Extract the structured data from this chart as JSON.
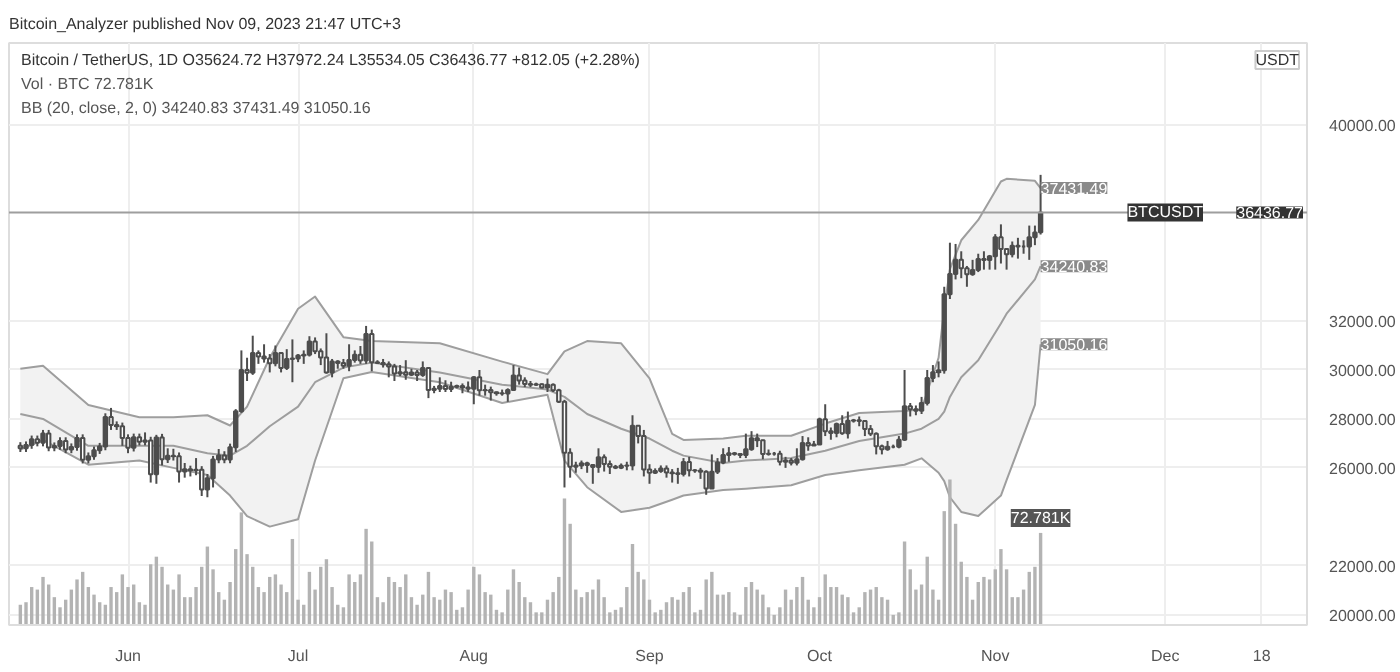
{
  "chart_data": {
    "type": "candlestick",
    "title": "Bitcoin / TetherUS, 1D  O35624.72 H37972.24 L35534.05 C36436.77 +812.05 (+2.28%)",
    "ylabel": "USDT",
    "annotations": [
      "Bitcoin_Analyzer published Nov 09, 2023 21:47 UTC+3",
      "Vol · BTC 72.781K",
      "BB (20, close, 2, 0) 34240.83 37431.49 31050.16",
      {
        "text": "37431.49",
        "x": "2023-11-09",
        "y": 37431.49
      },
      {
        "text": "34240.83",
        "x": "2023-11-09",
        "y": 34240.83
      },
      {
        "text": "31050.16",
        "x": "2023-11-09",
        "y": 31050.16
      },
      {
        "text": "36436.77",
        "y": 36436.77
      }
    ],
    "grid": true,
    "xlim": [
      "2023-05-11",
      "2023-12-26"
    ],
    "ylim": [
      19580,
      43360
    ],
    "xticks": [
      {
        "value": "2023-06-01",
        "label": "Jun"
      },
      {
        "value": "2023-07-01",
        "label": "Jul"
      },
      {
        "value": "2023-08-01",
        "label": "Aug"
      },
      {
        "value": "2023-09-01",
        "label": "Sep"
      },
      {
        "value": "2023-10-01",
        "label": "Oct"
      },
      {
        "value": "2023-11-01",
        "label": "Nov"
      },
      {
        "value": "2023-12-01",
        "label": "Dec"
      },
      {
        "value": "2023-12-18",
        "label": "18"
      }
    ],
    "yticks": [
      {
        "value": 20000,
        "label": "20000.00"
      },
      {
        "value": 22000,
        "label": "22000.00"
      },
      {
        "value": 26000,
        "label": "26000.00"
      },
      {
        "value": 28000,
        "label": "28000.00"
      },
      {
        "value": 30000,
        "label": "30000.00"
      },
      {
        "value": 32000,
        "label": "32000.00"
      },
      {
        "value": 40000,
        "label": "40000.00"
      }
    ],
    "y2lim": [
      0,
      460
    ],
    "ref_lines": [
      {
        "axis": "y",
        "value": 36436.77,
        "label": "BTCUSDT",
        "color": "#9e9e9e"
      }
    ],
    "color": "#4d4d4d",
    "x": [
      "2023-05-13",
      "2023-05-14",
      "2023-05-15",
      "2023-05-16",
      "2023-05-17",
      "2023-05-18",
      "2023-05-19",
      "2023-05-20",
      "2023-05-21",
      "2023-05-22",
      "2023-05-23",
      "2023-05-24",
      "2023-05-25",
      "2023-05-26",
      "2023-05-27",
      "2023-05-28",
      "2023-05-29",
      "2023-05-30",
      "2023-05-31",
      "2023-06-01",
      "2023-06-02",
      "2023-06-03",
      "2023-06-04",
      "2023-06-05",
      "2023-06-06",
      "2023-06-07",
      "2023-06-08",
      "2023-06-09",
      "2023-06-10",
      "2023-06-11",
      "2023-06-12",
      "2023-06-13",
      "2023-06-14",
      "2023-06-15",
      "2023-06-16",
      "2023-06-17",
      "2023-06-18",
      "2023-06-19",
      "2023-06-20",
      "2023-06-21",
      "2023-06-22",
      "2023-06-23",
      "2023-06-24",
      "2023-06-25",
      "2023-06-26",
      "2023-06-27",
      "2023-06-28",
      "2023-06-29",
      "2023-06-30",
      "2023-07-01",
      "2023-07-02",
      "2023-07-03",
      "2023-07-04",
      "2023-07-05",
      "2023-07-06",
      "2023-07-07",
      "2023-07-08",
      "2023-07-09",
      "2023-07-10",
      "2023-07-11",
      "2023-07-12",
      "2023-07-13",
      "2023-07-14",
      "2023-07-15",
      "2023-07-16",
      "2023-07-17",
      "2023-07-18",
      "2023-07-19",
      "2023-07-20",
      "2023-07-21",
      "2023-07-22",
      "2023-07-23",
      "2023-07-24",
      "2023-07-25",
      "2023-07-26",
      "2023-07-27",
      "2023-07-28",
      "2023-07-29",
      "2023-07-30",
      "2023-07-31",
      "2023-08-01",
      "2023-08-02",
      "2023-08-03",
      "2023-08-04",
      "2023-08-05",
      "2023-08-06",
      "2023-08-07",
      "2023-08-08",
      "2023-08-09",
      "2023-08-10",
      "2023-08-11",
      "2023-08-12",
      "2023-08-13",
      "2023-08-14",
      "2023-08-15",
      "2023-08-16",
      "2023-08-17",
      "2023-08-18",
      "2023-08-19",
      "2023-08-20",
      "2023-08-21",
      "2023-08-22",
      "2023-08-23",
      "2023-08-24",
      "2023-08-25",
      "2023-08-26",
      "2023-08-27",
      "2023-08-28",
      "2023-08-29",
      "2023-08-30",
      "2023-08-31",
      "2023-09-01",
      "2023-09-02",
      "2023-09-03",
      "2023-09-04",
      "2023-09-05",
      "2023-09-06",
      "2023-09-07",
      "2023-09-08",
      "2023-09-09",
      "2023-09-10",
      "2023-09-11",
      "2023-09-12",
      "2023-09-13",
      "2023-09-14",
      "2023-09-15",
      "2023-09-16",
      "2023-09-17",
      "2023-09-18",
      "2023-09-19",
      "2023-09-20",
      "2023-09-21",
      "2023-09-22",
      "2023-09-23",
      "2023-09-24",
      "2023-09-25",
      "2023-09-26",
      "2023-09-27",
      "2023-09-28",
      "2023-09-29",
      "2023-09-30",
      "2023-10-01",
      "2023-10-02",
      "2023-10-03",
      "2023-10-04",
      "2023-10-05",
      "2023-10-06",
      "2023-10-07",
      "2023-10-08",
      "2023-10-09",
      "2023-10-10",
      "2023-10-11",
      "2023-10-12",
      "2023-10-13",
      "2023-10-14",
      "2023-10-15",
      "2023-10-16",
      "2023-10-17",
      "2023-10-18",
      "2023-10-19",
      "2023-10-20",
      "2023-10-21",
      "2023-10-22",
      "2023-10-23",
      "2023-10-24",
      "2023-10-25",
      "2023-10-26",
      "2023-10-27",
      "2023-10-28",
      "2023-10-29",
      "2023-10-30",
      "2023-10-31",
      "2023-11-01",
      "2023-11-02",
      "2023-11-03",
      "2023-11-04",
      "2023-11-05",
      "2023-11-06",
      "2023-11-07",
      "2023-11-08",
      "2023-11-09"
    ],
    "ohlc": [
      [
        26900,
        27050,
        26650,
        26800
      ],
      [
        26800,
        27080,
        26650,
        26930
      ],
      [
        26930,
        27320,
        26780,
        27170
      ],
      [
        27170,
        27320,
        26880,
        27030
      ],
      [
        27030,
        27550,
        26880,
        27400
      ],
      [
        27400,
        27550,
        26680,
        26830
      ],
      [
        26830,
        27040,
        26680,
        26890
      ],
      [
        26890,
        27250,
        26740,
        27100
      ],
      [
        27100,
        27250,
        26600,
        26750
      ],
      [
        26750,
        27000,
        26600,
        26850
      ],
      [
        26850,
        27370,
        26700,
        27220
      ],
      [
        27220,
        27370,
        26180,
        26330
      ],
      [
        26330,
        26630,
        26180,
        26480
      ],
      [
        26480,
        26870,
        26330,
        26720
      ],
      [
        26720,
        27020,
        26570,
        26870
      ],
      [
        26870,
        28230,
        26720,
        28080
      ],
      [
        28080,
        28450,
        27550,
        27750
      ],
      [
        27750,
        27900,
        27550,
        27700
      ],
      [
        27700,
        27850,
        26900,
        27220
      ],
      [
        27220,
        27370,
        26600,
        26820
      ],
      [
        26820,
        27400,
        26670,
        27250
      ],
      [
        27250,
        27400,
        26920,
        27070
      ],
      [
        27070,
        27450,
        26920,
        27120
      ],
      [
        27120,
        27270,
        25400,
        25740
      ],
      [
        25740,
        27350,
        25350,
        27240
      ],
      [
        27240,
        27390,
        26100,
        26350
      ],
      [
        26350,
        26800,
        26200,
        26500
      ],
      [
        26500,
        26780,
        26300,
        26480
      ],
      [
        26480,
        26630,
        25400,
        25850
      ],
      [
        25850,
        26200,
        25600,
        25940
      ],
      [
        25940,
        26090,
        25650,
        25900
      ],
      [
        25900,
        26400,
        25700,
        25920
      ],
      [
        25920,
        26070,
        24850,
        25120
      ],
      [
        25120,
        25750,
        24800,
        25580
      ],
      [
        25580,
        26490,
        25200,
        26340
      ],
      [
        26340,
        26770,
        26190,
        26510
      ],
      [
        26510,
        26680,
        26190,
        26340
      ],
      [
        26340,
        26990,
        26190,
        26840
      ],
      [
        26840,
        28400,
        26650,
        28310
      ],
      [
        28310,
        30800,
        28250,
        30000
      ],
      [
        30000,
        30500,
        29550,
        29890
      ],
      [
        29890,
        31400,
        29800,
        30690
      ],
      [
        30690,
        30800,
        30250,
        30550
      ],
      [
        30550,
        31050,
        30300,
        30470
      ],
      [
        30470,
        30650,
        29900,
        30270
      ],
      [
        30270,
        31000,
        30150,
        30690
      ],
      [
        30690,
        30700,
        29900,
        30080
      ],
      [
        30080,
        30850,
        30000,
        30450
      ],
      [
        30450,
        31250,
        29500,
        30470
      ],
      [
        30470,
        30650,
        30320,
        30590
      ],
      [
        30590,
        30800,
        30250,
        30620
      ],
      [
        30620,
        31380,
        30550,
        31160
      ],
      [
        31160,
        31330,
        30650,
        30770
      ],
      [
        30770,
        30880,
        30200,
        30510
      ],
      [
        30510,
        31500,
        29850,
        29900
      ],
      [
        29900,
        30450,
        29700,
        30350
      ],
      [
        30350,
        30400,
        30050,
        30290
      ],
      [
        30290,
        30450,
        30050,
        30170
      ],
      [
        30170,
        31050,
        29950,
        30410
      ],
      [
        30410,
        30800,
        30300,
        30620
      ],
      [
        30620,
        30980,
        30250,
        30390
      ],
      [
        30390,
        31800,
        30250,
        31470
      ],
      [
        31470,
        31650,
        29950,
        30320
      ],
      [
        30320,
        30400,
        30250,
        30290
      ],
      [
        30290,
        30450,
        30100,
        30230
      ],
      [
        30230,
        30350,
        29700,
        30140
      ],
      [
        30140,
        30250,
        29550,
        29860
      ],
      [
        29860,
        30200,
        29750,
        29910
      ],
      [
        29910,
        30400,
        29600,
        29800
      ],
      [
        29800,
        30050,
        29750,
        29900
      ],
      [
        29900,
        30000,
        29550,
        29790
      ],
      [
        29790,
        30350,
        29720,
        30080
      ],
      [
        30080,
        30100,
        28850,
        29180
      ],
      [
        29180,
        29350,
        29050,
        29230
      ],
      [
        29230,
        29700,
        29100,
        29350
      ],
      [
        29350,
        29580,
        29100,
        29220
      ],
      [
        29220,
        29520,
        29100,
        29310
      ],
      [
        29310,
        29400,
        29250,
        29350
      ],
      [
        29350,
        29450,
        29050,
        29280
      ],
      [
        29280,
        29530,
        29100,
        29230
      ],
      [
        29230,
        29750,
        28600,
        29700
      ],
      [
        29700,
        30000,
        28950,
        29170
      ],
      [
        29170,
        29400,
        28950,
        29180
      ],
      [
        29180,
        29320,
        28750,
        29090
      ],
      [
        29090,
        29120,
        28950,
        29050
      ],
      [
        29050,
        29200,
        28950,
        29040
      ],
      [
        29040,
        29250,
        28700,
        29180
      ],
      [
        29180,
        30200,
        29150,
        29770
      ],
      [
        29770,
        30100,
        29400,
        29570
      ],
      [
        29570,
        29700,
        29300,
        29430
      ],
      [
        29430,
        29550,
        29300,
        29400
      ],
      [
        29400,
        29480,
        29350,
        29420
      ],
      [
        29420,
        29450,
        29250,
        29280
      ],
      [
        29280,
        29650,
        29100,
        29400
      ],
      [
        29400,
        29450,
        29100,
        29170
      ],
      [
        29170,
        29230,
        28650,
        28700
      ],
      [
        28700,
        28780,
        25200,
        26620
      ],
      [
        26620,
        26800,
        25600,
        26050
      ],
      [
        26050,
        26250,
        25800,
        26100
      ],
      [
        26100,
        26300,
        25950,
        26190
      ],
      [
        26190,
        26250,
        25800,
        26120
      ],
      [
        26120,
        26150,
        25350,
        26040
      ],
      [
        26040,
        26800,
        25800,
        26430
      ],
      [
        26430,
        26550,
        25850,
        26160
      ],
      [
        26160,
        26300,
        25750,
        26050
      ],
      [
        26050,
        26120,
        25950,
        26010
      ],
      [
        26010,
        26180,
        25950,
        26090
      ],
      [
        26090,
        26250,
        25900,
        26100
      ],
      [
        26100,
        28150,
        25900,
        27720
      ],
      [
        27720,
        27750,
        27000,
        27300
      ],
      [
        27300,
        27550,
        25650,
        25930
      ],
      [
        25930,
        26150,
        25350,
        25800
      ],
      [
        25800,
        25980,
        25750,
        25870
      ],
      [
        25870,
        26100,
        25800,
        25970
      ],
      [
        25970,
        26100,
        25600,
        25810
      ],
      [
        25810,
        25950,
        25400,
        25780
      ],
      [
        25780,
        26000,
        25350,
        25750
      ],
      [
        25750,
        26400,
        25650,
        26240
      ],
      [
        26240,
        26450,
        25650,
        25900
      ],
      [
        25900,
        25950,
        25800,
        25890
      ],
      [
        25890,
        26000,
        25550,
        25840
      ],
      [
        25840,
        25900,
        24900,
        25160
      ],
      [
        25160,
        26550,
        25150,
        25840
      ],
      [
        25840,
        26400,
        25750,
        26220
      ],
      [
        26220,
        26800,
        26150,
        26530
      ],
      [
        26530,
        26850,
        26250,
        26600
      ],
      [
        26600,
        26650,
        26500,
        26570
      ],
      [
        26570,
        26600,
        26400,
        26530
      ],
      [
        26530,
        27400,
        26400,
        26760
      ],
      [
        26760,
        27500,
        26700,
        27210
      ],
      [
        27210,
        27400,
        26850,
        27130
      ],
      [
        27130,
        27150,
        26350,
        26570
      ],
      [
        26570,
        26750,
        26500,
        26580
      ],
      [
        26580,
        26650,
        26500,
        26580
      ],
      [
        26580,
        26700,
        26100,
        26250
      ],
      [
        26250,
        26450,
        26000,
        26300
      ],
      [
        26300,
        26400,
        26100,
        26210
      ],
      [
        26210,
        26800,
        26100,
        26350
      ],
      [
        26350,
        27300,
        26300,
        27020
      ],
      [
        27020,
        27250,
        26700,
        26910
      ],
      [
        26910,
        27100,
        26900,
        26960
      ],
      [
        26960,
        28050,
        26950,
        27990
      ],
      [
        27990,
        28600,
        27300,
        27500
      ],
      [
        27500,
        27650,
        27150,
        27430
      ],
      [
        27430,
        27850,
        27250,
        27790
      ],
      [
        27790,
        28150,
        27350,
        27410
      ],
      [
        27410,
        28300,
        27200,
        27930
      ],
      [
        27930,
        28000,
        27850,
        27950
      ],
      [
        27950,
        28100,
        27700,
        27920
      ],
      [
        27920,
        27950,
        27300,
        27590
      ],
      [
        27590,
        27750,
        27300,
        27390
      ],
      [
        27390,
        27450,
        26550,
        26880
      ],
      [
        26880,
        26950,
        26550,
        26760
      ],
      [
        26760,
        27100,
        26700,
        26860
      ],
      [
        26860,
        26950,
        26800,
        26860
      ],
      [
        26860,
        27300,
        26800,
        27150
      ],
      [
        27150,
        30000,
        27100,
        28520
      ],
      [
        28520,
        28650,
        28100,
        28400
      ],
      [
        28400,
        28550,
        28150,
        28330
      ],
      [
        28330,
        28900,
        28200,
        28650
      ],
      [
        28650,
        30000,
        28550,
        29670
      ],
      [
        29670,
        30200,
        29500,
        29910
      ],
      [
        29910,
        30350,
        29700,
        29990
      ],
      [
        29990,
        33400,
        29850,
        33090
      ],
      [
        33090,
        35200,
        32900,
        33920
      ],
      [
        33920,
        35150,
        33700,
        34500
      ],
      [
        34500,
        34850,
        33750,
        34160
      ],
      [
        34160,
        34250,
        33400,
        33910
      ],
      [
        33910,
        34500,
        33850,
        34090
      ],
      [
        34090,
        34750,
        34000,
        34530
      ],
      [
        34530,
        34850,
        34100,
        34490
      ],
      [
        34490,
        34700,
        34100,
        34650
      ],
      [
        34650,
        35550,
        34100,
        35420
      ],
      [
        35420,
        35950,
        34350,
        34940
      ],
      [
        34940,
        34950,
        34100,
        34730
      ],
      [
        34730,
        35250,
        34600,
        35080
      ],
      [
        35080,
        35400,
        34550,
        35050
      ],
      [
        35050,
        35300,
        34750,
        35050
      ],
      [
        35050,
        35900,
        34500,
        35420
      ],
      [
        35420,
        35900,
        35100,
        35620
      ],
      [
        35624.72,
        37972.24,
        35534.05,
        36436.77
      ]
    ],
    "series": [
      {
        "type": "line",
        "color": "#9e9e9e",
        "x": [
          "2023-05-13",
          "2023-05-17",
          "2023-05-25",
          "2023-06-03",
          "2023-06-09",
          "2023-06-15",
          "2023-06-19",
          "2023-06-22",
          "2023-06-26",
          "2023-07-01",
          "2023-07-04",
          "2023-07-09",
          "2023-07-14",
          "2023-07-26",
          "2023-08-06",
          "2023-08-14",
          "2023-08-17",
          "2023-08-21",
          "2023-08-27",
          "2023-09-01",
          "2023-09-05",
          "2023-09-07",
          "2023-09-14",
          "2023-09-18",
          "2023-09-26",
          "2023-10-02",
          "2023-10-08",
          "2023-10-16",
          "2023-10-19",
          "2023-10-22",
          "2023-10-23",
          "2023-10-24",
          "2023-10-26",
          "2023-10-29",
          "2023-11-02",
          "2023-11-03",
          "2023-11-08",
          "2023-11-09"
        ],
        "values": [
          28200,
          28000,
          26900,
          26900,
          26900,
          26600,
          26500,
          26900,
          27700,
          28500,
          29500,
          30100,
          30300,
          29900,
          29400,
          29200,
          28900,
          28200,
          27600,
          27200,
          26700,
          26500,
          26200,
          26300,
          26400,
          26700,
          27100,
          27400,
          27600,
          28000,
          28300,
          28900,
          29700,
          30400,
          31900,
          32300,
          33700,
          34240.83
        ],
        "lower": [
          26750,
          27140,
          26130,
          26300,
          26000,
          25710,
          24870,
          24030,
          23600,
          23900,
          26300,
          29660,
          29920,
          29500,
          28650,
          28990,
          26300,
          25210,
          24200,
          24370,
          24700,
          24870,
          25100,
          25150,
          25290,
          25710,
          25900,
          26130,
          26390,
          25800,
          25460,
          24800,
          24200,
          24030,
          24870,
          25500,
          28570,
          31050.16
        ],
        "upper": [
          30050,
          30170,
          28570,
          28070,
          28070,
          28150,
          27730,
          28500,
          30500,
          32500,
          33000,
          31340,
          31180,
          31090,
          30340,
          29830,
          30760,
          31180,
          31090,
          29660,
          27390,
          27140,
          27200,
          27310,
          27310,
          27810,
          28240,
          28320,
          28400,
          30500,
          32500,
          34120,
          35300,
          36130,
          37700,
          37810,
          37730,
          37431.49
        ]
      },
      {
        "type": "line",
        "color": "#9e9e9e",
        "x": [
          "2023-05-13",
          "2023-05-17",
          "2023-05-25",
          "2023-06-03",
          "2023-06-09",
          "2023-06-15",
          "2023-06-19",
          "2023-06-22",
          "2023-06-26",
          "2023-07-01",
          "2023-07-04",
          "2023-07-09",
          "2023-07-14",
          "2023-07-26",
          "2023-08-06",
          "2023-08-14",
          "2023-08-17",
          "2023-08-21",
          "2023-08-27",
          "2023-09-01",
          "2023-09-05",
          "2023-09-07",
          "2023-09-14",
          "2023-09-18",
          "2023-09-26",
          "2023-10-02",
          "2023-10-08",
          "2023-10-16",
          "2023-10-19",
          "2023-10-22",
          "2023-10-23",
          "2023-10-24",
          "2023-10-26",
          "2023-10-29",
          "2023-11-02",
          "2023-11-03",
          "2023-11-08",
          "2023-11-09"
        ],
        "values": [
          30050,
          30170,
          28570,
          28070,
          28070,
          28150,
          27730,
          28500,
          30500,
          32500,
          33000,
          31340,
          31180,
          31090,
          30340,
          29830,
          30760,
          31180,
          31090,
          29660,
          27390,
          27140,
          27200,
          27310,
          27310,
          27810,
          28240,
          28320,
          28400,
          30500,
          32500,
          34120,
          35300,
          36130,
          37700,
          37810,
          37730,
          37431.49
        ]
      },
      {
        "type": "line",
        "color": "#9e9e9e",
        "x": [
          "2023-05-13",
          "2023-05-17",
          "2023-05-25",
          "2023-06-03",
          "2023-06-09",
          "2023-06-15",
          "2023-06-19",
          "2023-06-22",
          "2023-06-26",
          "2023-07-01",
          "2023-07-04",
          "2023-07-09",
          "2023-07-14",
          "2023-07-26",
          "2023-08-06",
          "2023-08-14",
          "2023-08-17",
          "2023-08-21",
          "2023-08-27",
          "2023-09-01",
          "2023-09-05",
          "2023-09-07",
          "2023-09-14",
          "2023-09-18",
          "2023-09-26",
          "2023-10-02",
          "2023-10-08",
          "2023-10-16",
          "2023-10-19",
          "2023-10-22",
          "2023-10-23",
          "2023-10-24",
          "2023-10-26",
          "2023-10-29",
          "2023-11-02",
          "2023-11-03",
          "2023-11-08",
          "2023-11-09"
        ],
        "values": [
          26750,
          27140,
          26130,
          26300,
          26000,
          25710,
          24870,
          24030,
          23600,
          23900,
          26300,
          29660,
          29920,
          29500,
          28650,
          28990,
          26300,
          25210,
          24200,
          24370,
          24700,
          24870,
          25100,
          25150,
          25290,
          25710,
          25900,
          26130,
          26390,
          25800,
          25460,
          24800,
          24200,
          24030,
          24870,
          25500,
          28570,
          31050.16
        ]
      },
      {
        "type": "bar",
        "axis": "y2",
        "color": "#b3b3b3",
        "values": [
          16,
          18,
          30,
          28,
          38,
          32,
          22,
          14,
          20,
          28,
          36,
          42,
          30,
          24,
          18,
          16,
          30,
          26,
          40,
          30,
          32,
          18,
          16,
          48,
          54,
          46,
          32,
          28,
          40,
          22,
          22,
          30,
          46,
          62,
          44,
          26,
          20,
          34,
          60,
          89,
          56,
          46,
          30,
          26,
          38,
          40,
          32,
          26,
          68,
          20,
          16,
          42,
          28,
          46,
          52,
          30,
          16,
          14,
          40,
          34,
          40,
          76,
          66,
          22,
          18,
          38,
          34,
          30,
          40,
          22,
          16,
          24,
          42,
          22,
          20,
          28,
          26,
          12,
          14,
          28,
          46,
          40,
          26,
          24,
          12,
          10,
          28,
          44,
          34,
          22,
          18,
          10,
          10,
          20,
          26,
          38,
          100,
          80,
          28,
          22,
          26,
          28,
          36,
          22,
          10,
          12,
          14,
          30,
          64,
          42,
          36,
          20,
          10,
          12,
          18,
          22,
          20,
          26,
          30,
          10,
          12,
          36,
          42,
          24,
          24,
          26,
          10,
          8,
          30,
          34,
          28,
          24,
          14,
          8,
          14,
          28,
          20,
          30,
          38,
          20,
          14,
          22,
          40,
          30,
          30,
          24,
          22,
          10,
          14,
          26,
          28,
          30,
          22,
          20,
          8,
          10,
          66,
          44,
          28,
          32,
          54,
          28,
          20,
          90,
          115,
          80,
          50,
          38,
          20,
          34,
          38,
          36,
          44,
          60,
          44,
          22,
          22,
          28,
          42,
          46,
          72.781
        ],
        "value_labels": [
          null,
          null,
          null,
          null,
          null,
          null,
          null,
          null,
          null,
          null,
          null,
          null,
          null,
          null,
          null,
          null,
          null,
          null,
          null,
          null,
          null,
          null,
          null,
          null,
          null,
          null,
          null,
          null,
          null,
          null,
          null,
          null,
          null,
          null,
          null,
          null,
          null,
          null,
          null,
          null,
          null,
          null,
          null,
          null,
          null,
          null,
          null,
          null,
          null,
          null,
          null,
          null,
          null,
          null,
          null,
          null,
          null,
          null,
          null,
          null,
          null,
          null,
          null,
          null,
          null,
          null,
          null,
          null,
          null,
          null,
          null,
          null,
          null,
          null,
          null,
          null,
          null,
          null,
          null,
          null,
          null,
          null,
          null,
          null,
          null,
          null,
          null,
          null,
          null,
          null,
          null,
          null,
          null,
          null,
          null,
          null,
          null,
          null,
          null,
          null,
          null,
          null,
          null,
          null,
          null,
          null,
          null,
          null,
          null,
          null,
          null,
          null,
          null,
          null,
          null,
          null,
          null,
          null,
          null,
          null,
          null,
          null,
          null,
          null,
          null,
          null,
          null,
          null,
          null,
          null,
          null,
          null,
          null,
          null,
          null,
          null,
          null,
          null,
          null,
          null,
          null,
          null,
          null,
          null,
          null,
          null,
          null,
          null,
          null,
          null,
          null,
          null,
          null,
          null,
          null,
          null,
          null,
          null,
          null,
          null,
          null,
          null,
          null,
          null,
          null,
          null,
          null,
          null,
          null,
          null,
          null,
          null,
          null,
          null,
          null,
          null,
          null,
          null,
          null,
          null,
          "72.781K"
        ]
      }
    ]
  }
}
